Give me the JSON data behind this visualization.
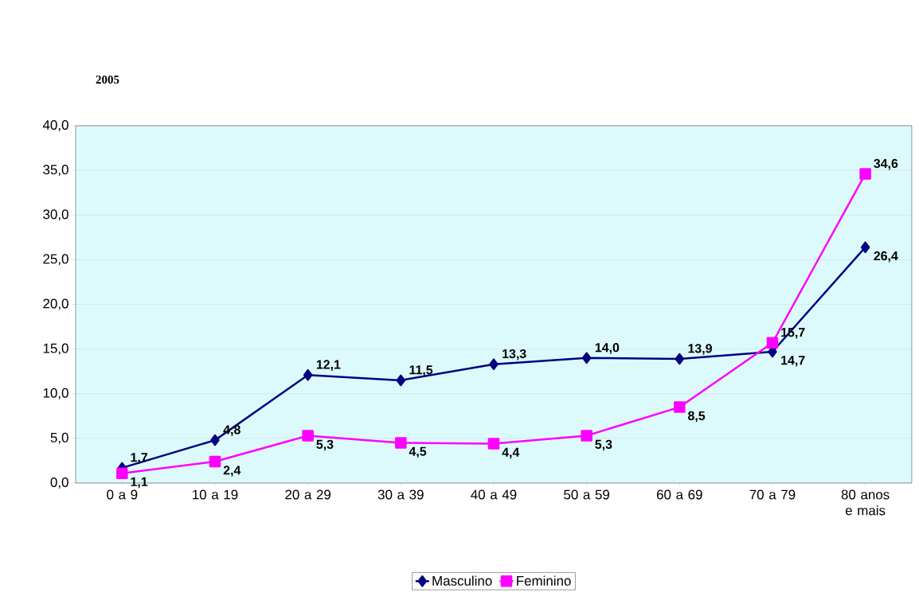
{
  "chart_data": {
    "type": "line",
    "title": "2005",
    "categories": [
      "0 a 9",
      "10 a 19",
      "20 a 29",
      "30 a 39",
      "40 a 49",
      "50 a 59",
      "60 a 69",
      "70 a 79",
      "80 anos e mais"
    ],
    "series": [
      {
        "name": "Masculino",
        "color": "#000080",
        "marker": "diamond",
        "values": [
          1.7,
          4.8,
          12.1,
          11.5,
          13.3,
          14.0,
          13.9,
          14.7,
          26.4
        ],
        "value_labels": [
          "1,7",
          "4,8",
          "12,1",
          "11,5",
          "13,3",
          "14,0",
          "13,9",
          "14,7",
          "26,4"
        ]
      },
      {
        "name": "Feminino",
        "color": "#ff00ff",
        "marker": "square",
        "values": [
          1.1,
          2.4,
          5.3,
          4.5,
          4.4,
          5.3,
          8.5,
          15.7,
          34.6
        ],
        "value_labels": [
          "1,1",
          "2,4",
          "5,3",
          "4,5",
          "4,4",
          "5,3",
          "8,5",
          "15,7",
          "34,6"
        ]
      }
    ],
    "ylim": [
      0,
      40
    ],
    "yticks": [
      {
        "value": 0,
        "label": "0,0"
      },
      {
        "value": 5,
        "label": "5,0"
      },
      {
        "value": 10,
        "label": "10,0"
      },
      {
        "value": 15,
        "label": "15,0"
      },
      {
        "value": 20,
        "label": "20,0"
      },
      {
        "value": 25,
        "label": "25,0"
      },
      {
        "value": 30,
        "label": "30,0"
      },
      {
        "value": 35,
        "label": "35,0"
      },
      {
        "value": 40,
        "label": "40,0"
      }
    ],
    "grid": "y",
    "legend": "bottom",
    "line_style": "solid"
  }
}
